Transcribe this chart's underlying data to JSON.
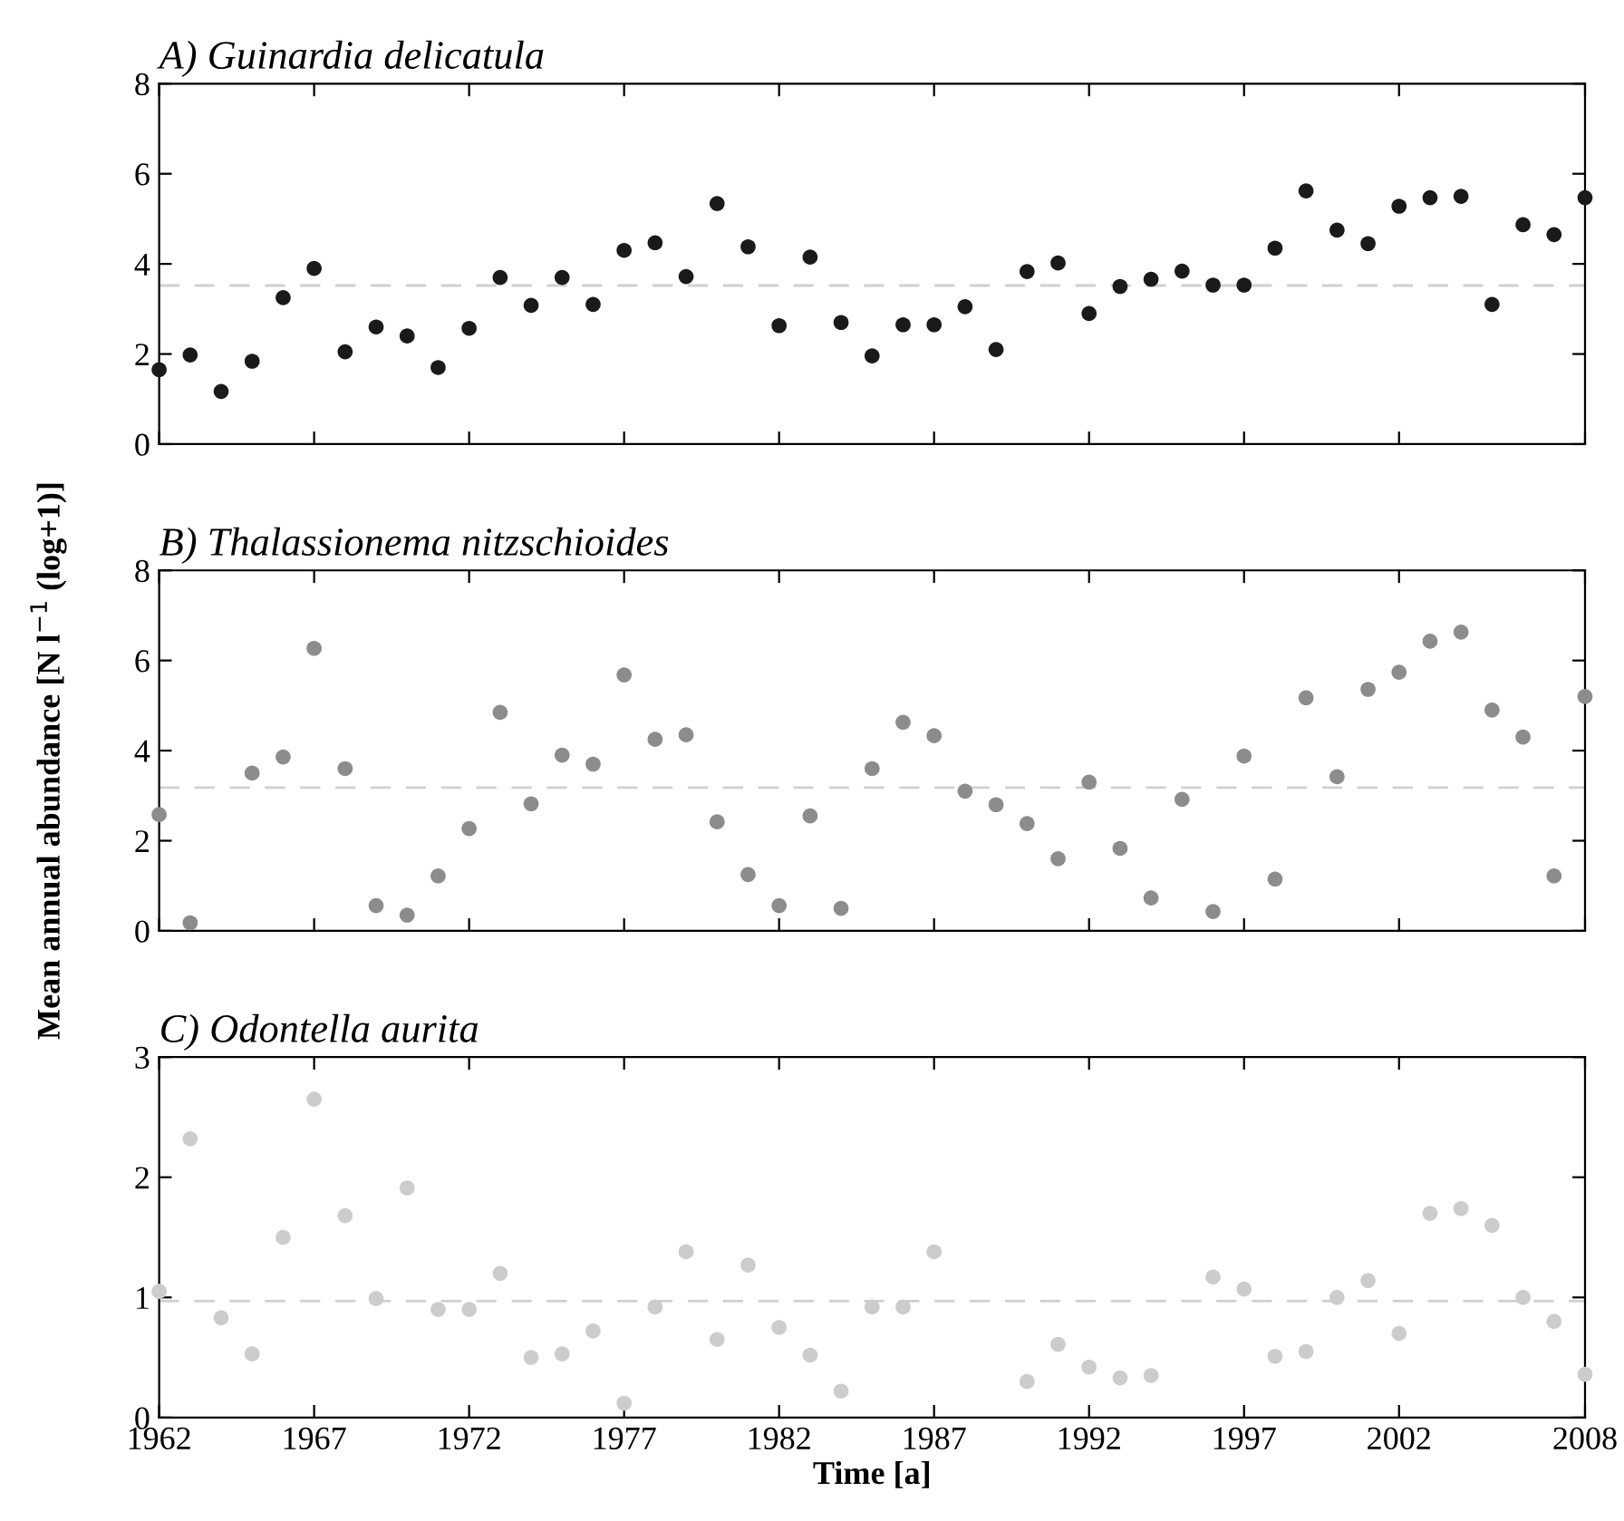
{
  "chart_data": [
    {
      "type": "scatter",
      "title": "A) Guinardia delicatula",
      "marker": "circle",
      "tick_labels": "y",
      "grid": false,
      "legend": false,
      "x": [
        1962,
        1963,
        1964,
        1965,
        1966,
        1967,
        1968,
        1969,
        1970,
        1971,
        1972,
        1973,
        1974,
        1975,
        1976,
        1977,
        1978,
        1979,
        1980,
        1981,
        1982,
        1983,
        1984,
        1985,
        1986,
        1987,
        1988,
        1989,
        1990,
        1991,
        1992,
        1993,
        1994,
        1995,
        1996,
        1997,
        1998,
        1999,
        2000,
        2001,
        2002,
        2003,
        2004,
        2005,
        2006,
        2007,
        2008
      ],
      "series": [
        {
          "color": "#1a1a1a",
          "values": [
            1.65,
            1.98,
            1.17,
            1.84,
            3.25,
            3.9,
            2.05,
            2.6,
            2.4,
            1.7,
            2.57,
            3.7,
            3.08,
            3.7,
            3.1,
            4.3,
            4.47,
            3.72,
            5.34,
            4.38,
            2.63,
            4.15,
            2.7,
            1.96,
            2.65,
            2.65,
            3.05,
            2.1,
            3.83,
            4.02,
            2.9,
            3.5,
            3.66,
            3.84,
            3.53,
            3.53,
            4.35,
            5.62,
            4.75,
            4.45,
            5.28,
            5.47,
            5.5,
            3.1,
            4.87,
            4.65,
            5.47
          ]
        }
      ],
      "ref_lines": [
        {
          "axis": "y",
          "value": 3.52,
          "color": "#d0d0d0",
          "line_style": "dashed"
        }
      ],
      "xlim": [
        1962,
        2008
      ],
      "ylim": [
        0,
        8
      ],
      "yticks": [
        0,
        2,
        4,
        6,
        8
      ]
    },
    {
      "type": "scatter",
      "title": "B) Thalassionema nitzschioides",
      "marker": "circle",
      "tick_labels": "y",
      "grid": false,
      "legend": false,
      "ylabel": "Mean annual abundance [N l$^{−1}$ (log+1)]",
      "x": [
        1962,
        1963,
        1964,
        1965,
        1966,
        1967,
        1968,
        1969,
        1970,
        1971,
        1972,
        1973,
        1974,
        1975,
        1976,
        1977,
        1978,
        1979,
        1980,
        1981,
        1982,
        1983,
        1984,
        1985,
        1986,
        1987,
        1988,
        1989,
        1990,
        1991,
        1992,
        1993,
        1994,
        1995,
        1996,
        1997,
        1998,
        1999,
        2000,
        2001,
        2002,
        2003,
        2004,
        2005,
        2006,
        2007,
        2008
      ],
      "series": [
        {
          "color": "#8c8c8c",
          "values": [
            2.58,
            0.18,
            null,
            3.5,
            3.86,
            6.27,
            3.6,
            0.56,
            0.35,
            1.22,
            2.27,
            4.85,
            2.82,
            3.9,
            3.7,
            5.68,
            4.25,
            4.35,
            2.42,
            1.25,
            0.56,
            2.55,
            0.5,
            3.6,
            4.63,
            4.33,
            3.1,
            2.8,
            2.38,
            1.6,
            3.3,
            1.83,
            0.73,
            2.92,
            0.43,
            3.88,
            1.15,
            5.17,
            3.42,
            5.36,
            5.74,
            6.43,
            6.63,
            4.9,
            4.3,
            1.22,
            5.2
          ]
        }
      ],
      "ref_lines": [
        {
          "axis": "y",
          "value": 3.18,
          "color": "#d0d0d0",
          "line_style": "dashed"
        }
      ],
      "xlim": [
        1962,
        2008
      ],
      "ylim": [
        0,
        8
      ],
      "yticks": [
        0,
        2,
        4,
        6,
        8
      ]
    },
    {
      "type": "scatter",
      "title": "C) Odontella aurita",
      "marker": "circle",
      "grid": false,
      "legend": false,
      "xlabel": "Time [a]",
      "x": [
        1962,
        1963,
        1964,
        1965,
        1966,
        1967,
        1968,
        1969,
        1970,
        1971,
        1972,
        1973,
        1974,
        1975,
        1976,
        1977,
        1978,
        1979,
        1980,
        1981,
        1982,
        1983,
        1984,
        1985,
        1986,
        1987,
        1988,
        1989,
        1990,
        1991,
        1992,
        1993,
        1994,
        1995,
        1996,
        1997,
        1998,
        1999,
        2000,
        2001,
        2002,
        2003,
        2004,
        2005,
        2006,
        2007,
        2008
      ],
      "series": [
        {
          "color": "#cccccc",
          "values": [
            1.05,
            2.32,
            0.83,
            0.53,
            1.5,
            2.65,
            1.68,
            0.99,
            1.91,
            0.9,
            0.9,
            1.2,
            0.5,
            0.53,
            0.72,
            0.12,
            0.92,
            1.38,
            0.65,
            1.27,
            0.75,
            0.52,
            0.22,
            0.92,
            0.92,
            1.38,
            null,
            null,
            0.3,
            0.61,
            0.42,
            0.33,
            0.35,
            null,
            1.17,
            1.07,
            0.51,
            0.55,
            1.0,
            1.14,
            0.7,
            1.7,
            1.74,
            1.6,
            1.0,
            0.8,
            0.36
          ]
        }
      ],
      "ref_lines": [
        {
          "axis": "y",
          "value": 0.97,
          "color": "#d0d0d0",
          "line_style": "dashed"
        }
      ],
      "xlim": [
        1962,
        2008
      ],
      "xticks": [
        1962,
        1967,
        1972,
        1977,
        1982,
        1987,
        1992,
        1997,
        2002,
        2008
      ],
      "ylim": [
        0,
        3
      ],
      "yticks": [
        0,
        1,
        2,
        3
      ]
    }
  ]
}
